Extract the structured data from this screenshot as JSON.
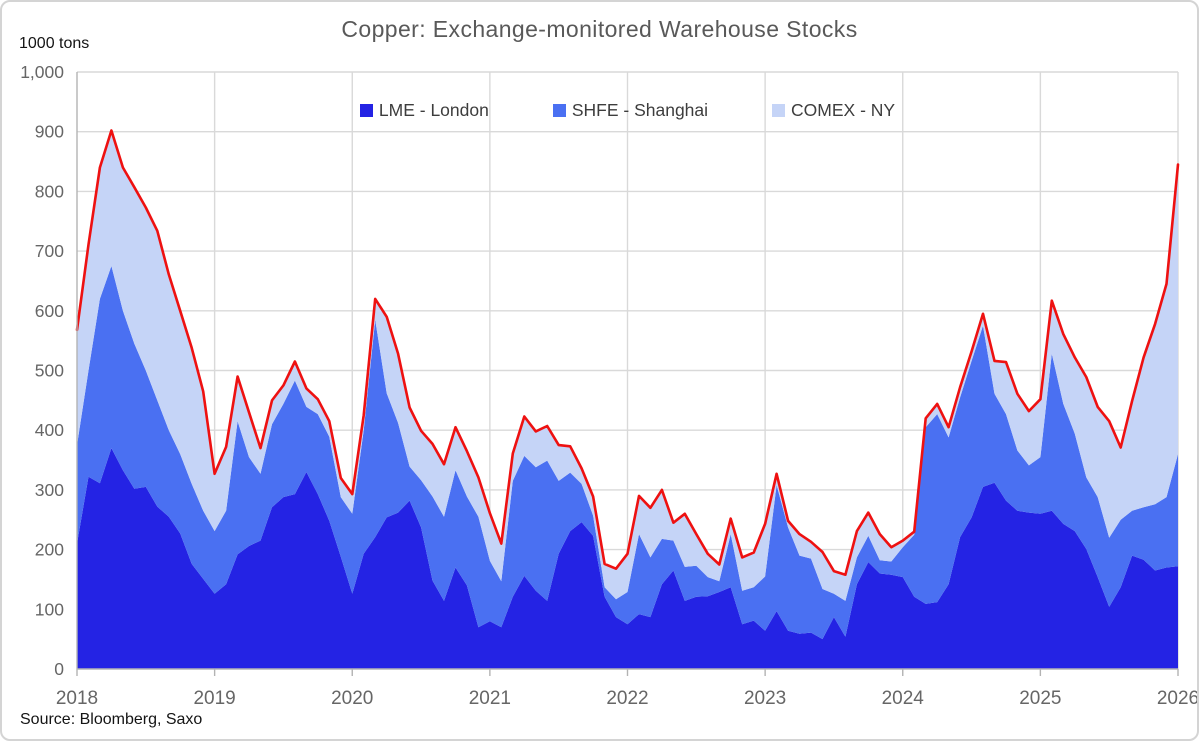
{
  "header": {
    "title": "Copper: Exchange-monitored Warehouse Stocks",
    "unit_label": "1000 tons",
    "source": "Source: Bloomberg, Saxo"
  },
  "legend": [
    {
      "label": "LME - London",
      "color": "#2423e4"
    },
    {
      "label": "SHFE - Shanghai",
      "color": "#4a70f2"
    },
    {
      "label": "COMEX - NY",
      "color": "#c5d4f7"
    }
  ],
  "chart_data": {
    "type": "area",
    "stacked": true,
    "title": "Copper: Exchange-monitored Warehouse Stocks",
    "ylabel": "1000 tons",
    "ylim": [
      0,
      1000
    ],
    "grid": true,
    "legend_position": "top-center",
    "total_line_color": "#ee1111",
    "grid_color": "#d9d9d9",
    "axis_color": "#b3b3b3",
    "tick_label_color": "#666666",
    "x_start_year": 2018,
    "x_tick_labels": [
      "2018",
      "2019",
      "2020",
      "2021",
      "2022",
      "2023",
      "2024",
      "2025",
      "2026"
    ],
    "y_tick_labels": [
      "0",
      "100",
      "200",
      "300",
      "400",
      "500",
      "600",
      "700",
      "800",
      "900",
      "1,000"
    ],
    "y_tick_values": [
      0,
      100,
      200,
      300,
      400,
      500,
      600,
      700,
      800,
      900,
      1000
    ],
    "points_per_year": 12,
    "series": [
      {
        "name": "LME - London",
        "color": "#2423e4",
        "values": [
          210,
          322,
          311,
          370,
          333,
          302,
          305,
          272,
          255,
          227,
          176,
          151,
          126,
          142,
          192,
          206,
          215,
          271,
          288,
          293,
          330,
          293,
          248,
          188,
          126,
          193,
          221,
          254,
          262,
          282,
          237,
          148,
          114,
          170,
          140,
          70,
          80,
          70,
          121,
          156,
          131,
          114,
          193,
          231,
          246,
          223,
          121,
          87,
          75,
          92,
          87,
          142,
          165,
          114,
          121,
          122,
          129,
          137,
          75,
          81,
          64,
          97,
          64,
          59,
          61,
          50,
          87,
          54,
          142,
          179,
          160,
          158,
          154,
          121,
          109,
          112,
          142,
          221,
          254,
          305,
          312,
          282,
          265,
          262,
          260,
          265,
          243,
          231,
          201,
          154,
          104,
          137,
          190,
          183,
          165,
          170,
          172
        ]
      },
      {
        "name": "SHFE - Shanghai",
        "color": "#4a70f2",
        "values": [
          165,
          178,
          309,
          305,
          267,
          243,
          195,
          178,
          145,
          133,
          134,
          114,
          105,
          123,
          223,
          149,
          112,
          139,
          156,
          190,
          109,
          134,
          141,
          100,
          134,
          207,
          364,
          208,
          150,
          57,
          79,
          141,
          141,
          163,
          149,
          185,
          101,
          77,
          194,
          201,
          207,
          235,
          122,
          98,
          64,
          34,
          16,
          30,
          54,
          134,
          100,
          76,
          50,
          57,
          52,
          32,
          18,
          89,
          56,
          56,
          91,
          211,
          173,
          131,
          124,
          84,
          39,
          60,
          45,
          44,
          22,
          22,
          50,
          104,
          296,
          315,
          246,
          234,
          262,
          270,
          149,
          145,
          101,
          79,
          95,
          263,
          201,
          163,
          120,
          134,
          116,
          113,
          75,
          88,
          111,
          118,
          188
        ]
      },
      {
        "name": "COMEX - NY",
        "color": "#c5d4f7",
        "values": [
          193,
          211,
          220,
          227,
          240,
          262,
          273,
          284,
          261,
          240,
          228,
          200,
          96,
          107,
          75,
          75,
          43,
          40,
          31,
          32,
          31,
          25,
          26,
          32,
          33,
          25,
          35,
          128,
          116,
          99,
          83,
          88,
          88,
          72,
          76,
          66,
          80,
          63,
          46,
          66,
          60,
          58,
          60,
          44,
          26,
          32,
          39,
          51,
          64,
          64,
          83,
          82,
          30,
          89,
          53,
          39,
          28,
          26,
          56,
          58,
          88,
          19,
          11,
          36,
          28,
          62,
          38,
          44,
          44,
          39,
          44,
          24,
          11,
          5,
          15,
          17,
          17,
          17,
          16,
          20,
          55,
          87,
          95,
          91,
          97,
          89,
          117,
          128,
          168,
          151,
          195,
          121,
          184,
          251,
          302,
          357,
          485
        ]
      }
    ]
  }
}
